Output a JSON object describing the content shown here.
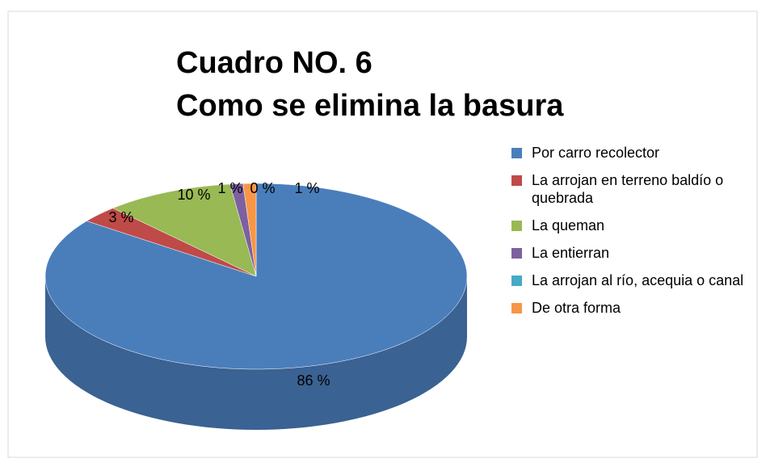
{
  "chart_data": {
    "type": "pie",
    "title": [
      "Cuadro NO. 6",
      "Como se elimina la basura"
    ],
    "categories": [
      "Por carro recolector",
      "La arrojan en terreno baldío o quebrada",
      "La queman",
      "La entierran",
      "La arrojan al río, acequia o canal",
      "De otra forma"
    ],
    "values": [
      86,
      3,
      10,
      1,
      0,
      1
    ],
    "value_labels": [
      "86 %",
      "3 %",
      "10 %",
      "1 %",
      "0 %",
      "1 %"
    ],
    "colors": [
      "#4a7ebb",
      "#be4b48",
      "#98b954",
      "#7d60a0",
      "#46aac5",
      "#f79646"
    ],
    "legend": "right"
  }
}
